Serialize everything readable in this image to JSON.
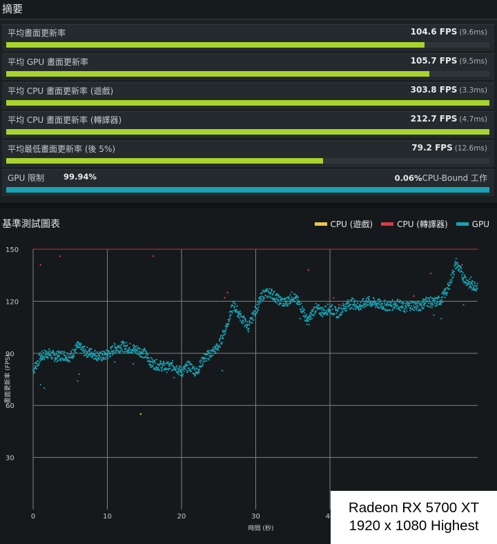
{
  "summary": {
    "title": "摘要",
    "metrics": [
      {
        "label": "平均畫面更新率",
        "value": "104.6 FPS",
        "ms": "(9.6ms)",
        "fill_pct": 86.6
      },
      {
        "label": "平均 GPU 畫面更新率",
        "value": "105.7 FPS",
        "ms": "(9.5ms)",
        "fill_pct": 87.5
      },
      {
        "label": "平均 CPU 畫面更新率 (遊戲)",
        "value": "303.8 FPS",
        "ms": "(3.3ms)",
        "fill_pct": 100
      },
      {
        "label": "平均 CPU 畫面更新率 (轉譯器)",
        "value": "212.7 FPS",
        "ms": "(4.7ms)",
        "fill_pct": 100
      },
      {
        "label": "平均最低畫面更新率 (後 5%)",
        "value": "79.2 FPS",
        "ms": "(12.6ms)",
        "fill_pct": 65.5
      }
    ],
    "gpu_bound": {
      "label": "GPU 限制",
      "gpu_pct": "99.94%",
      "cpu_pct": "0.06%",
      "cpu_label": "CPU-Bound 工作"
    }
  },
  "chart": {
    "title": "基準測試圖表",
    "legend": [
      {
        "name": "CPU (遊戲)",
        "color": "#e6c94a"
      },
      {
        "name": "CPU (轉譯器)",
        "color": "#d93b45"
      },
      {
        "name": "GPU",
        "color": "#18a3b3"
      }
    ]
  },
  "chart_data": {
    "type": "scatter",
    "title": "基準測試圖表",
    "xlabel": "時間 (秒)",
    "ylabel": "畫面更新率 (FPS)",
    "xlim": [
      0,
      60
    ],
    "ylim": [
      0,
      150
    ],
    "xticks": [
      0,
      10,
      20,
      30,
      40
    ],
    "yticks": [
      30,
      60,
      90,
      120,
      150
    ],
    "grid": true,
    "legend_position": "top-right",
    "series": [
      {
        "name": "GPU",
        "color": "#18a3b3",
        "x": [
          0,
          1,
          2,
          3,
          4,
          5,
          6,
          7,
          8,
          9,
          10,
          11,
          12,
          13,
          14,
          15,
          16,
          17,
          18,
          19,
          20,
          21,
          22,
          23,
          24,
          25,
          26,
          27,
          28,
          29,
          30,
          31,
          32,
          33,
          34,
          35,
          36,
          37,
          38,
          39,
          40,
          41,
          42,
          43,
          44,
          45,
          46,
          47,
          48,
          49,
          50,
          51,
          52,
          53,
          54,
          55,
          56,
          57,
          58,
          59,
          60
        ],
        "y": [
          80,
          88,
          90,
          88,
          89,
          88,
          94,
          91,
          90,
          88,
          89,
          93,
          94,
          93,
          92,
          90,
          84,
          83,
          82,
          83,
          79,
          83,
          79,
          87,
          90,
          94,
          105,
          118,
          111,
          105,
          115,
          124,
          125,
          121,
          119,
          123,
          118,
          108,
          116,
          114,
          116,
          113,
          117,
          119,
          117,
          120,
          119,
          118,
          117,
          119,
          116,
          118,
          117,
          120,
          119,
          121,
          128,
          142,
          134,
          129,
          129
        ]
      },
      {
        "name": "CPU (遊戲)",
        "color": "#e6c94a",
        "x": [
          14.5
        ],
        "y": [
          55
        ]
      },
      {
        "name": "CPU (轉譯器)",
        "color": "#d93b45",
        "x": [
          1,
          3.6,
          16.2,
          25.8,
          26.2,
          37.1,
          40.5,
          41.2,
          51.3,
          53.6,
          57.8,
          62
        ],
        "y": [
          141,
          146,
          146,
          122,
          125,
          138,
          122,
          118,
          123,
          136,
          141,
          150
        ]
      }
    ]
  },
  "watermark": {
    "line1": "Radeon RX 5700 XT",
    "line2": "1920 x 1080 Highest"
  }
}
